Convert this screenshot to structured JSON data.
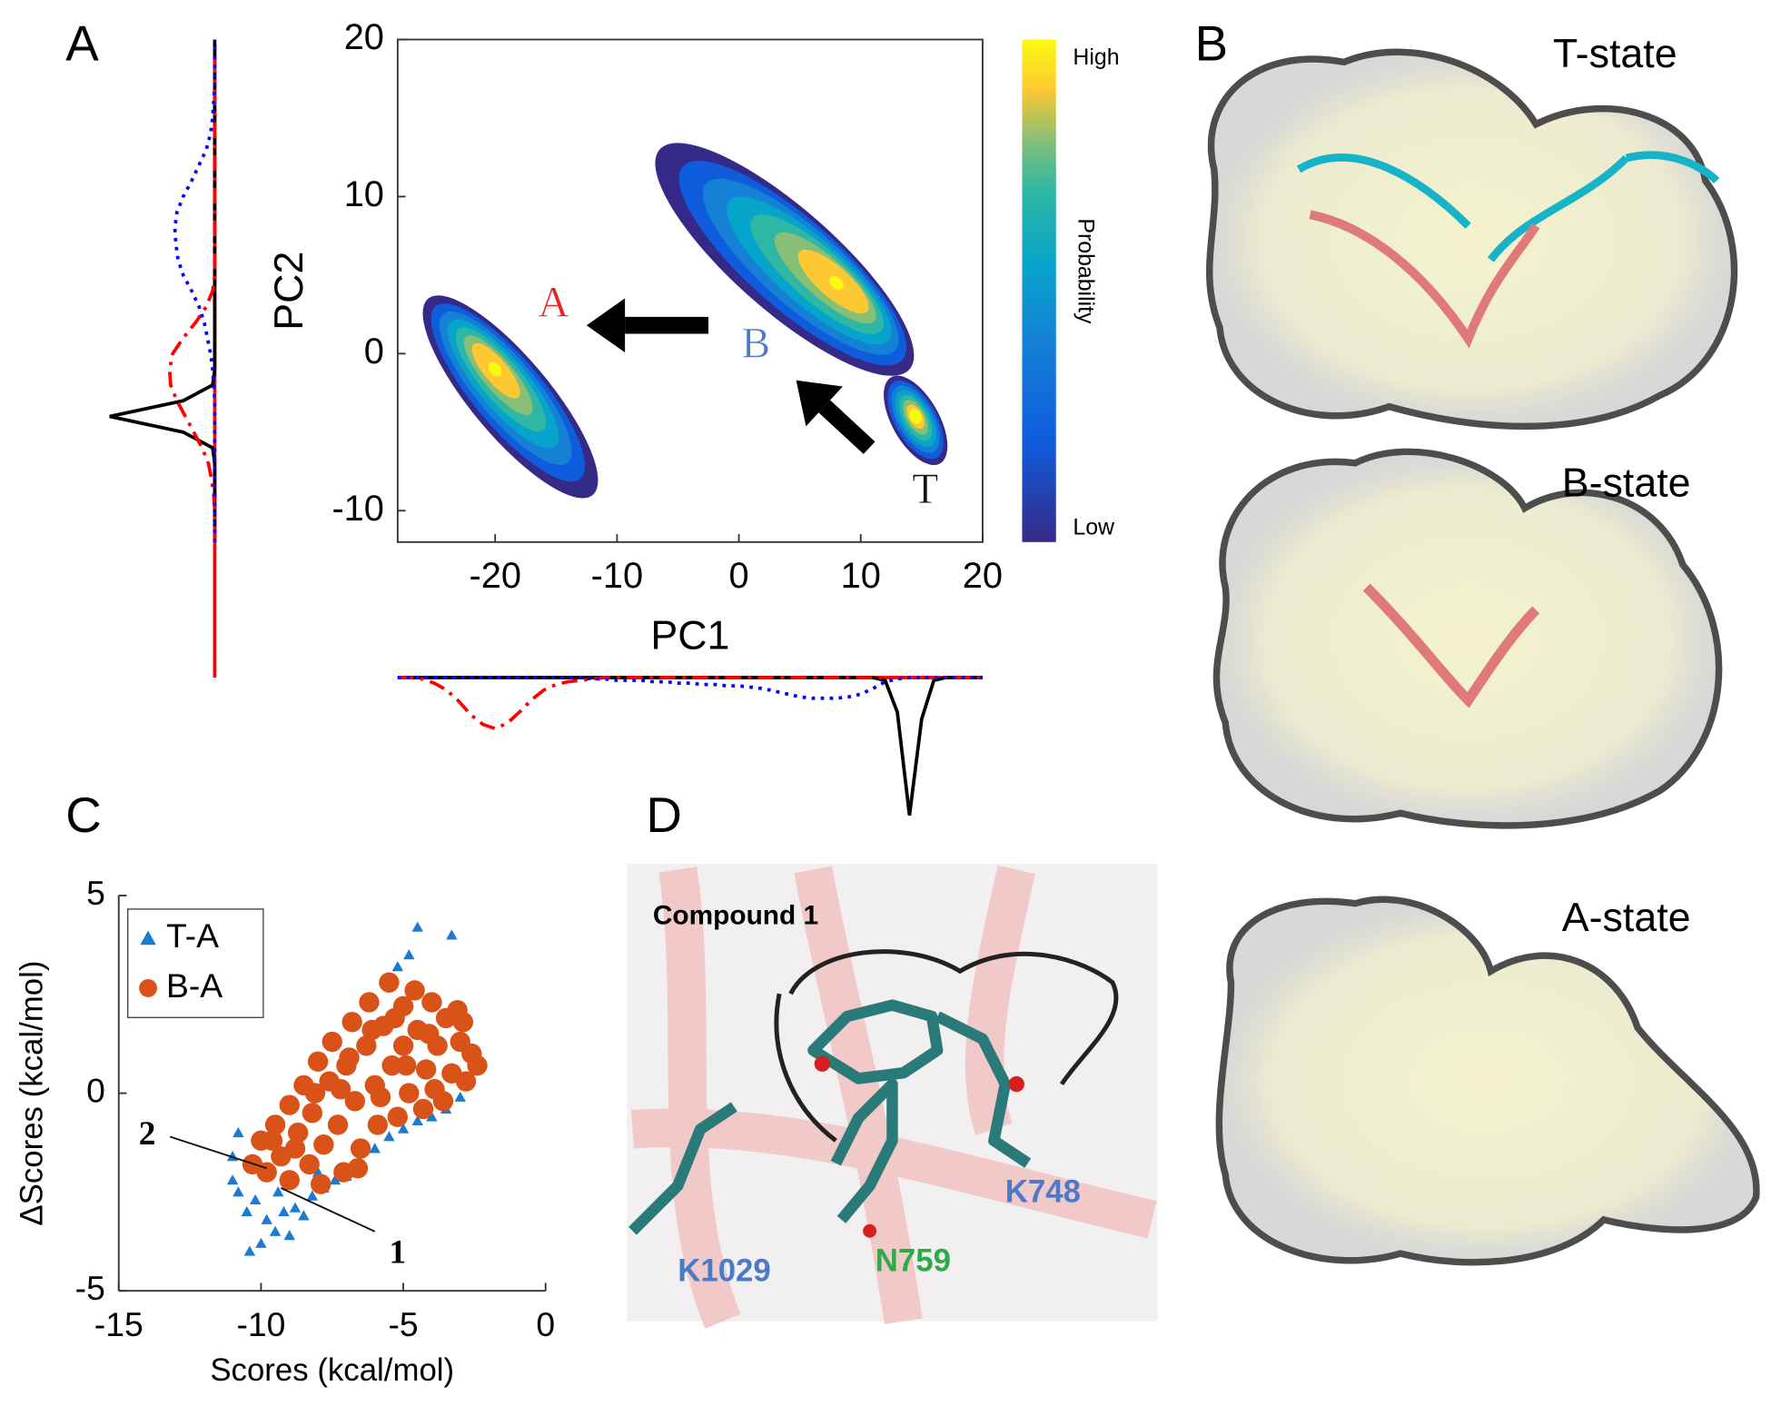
{
  "figure": {
    "panel_labels": [
      "A",
      "B",
      "C",
      "D"
    ],
    "structures": [
      "T-state",
      "B-state",
      "A-state"
    ],
    "docking": {
      "ligand": "Compound 1",
      "residues": [
        "K1029",
        "N759",
        "K748"
      ]
    }
  },
  "chart_data": [
    {
      "type": "density",
      "xlabel": "PC1",
      "ylabel": "PC2",
      "xlim": [
        -28,
        20
      ],
      "ylim": [
        -12,
        20
      ],
      "xticks": [
        -20,
        -10,
        0,
        10,
        20
      ],
      "yticks": [
        -10,
        0,
        10,
        20
      ],
      "colorbar": {
        "label": "Probability",
        "high": "High",
        "low": "Low"
      },
      "clusters": [
        {
          "from": [
            -25.5,
            3.5
          ],
          "to": [
            -12,
            -9
          ],
          "width": 5,
          "peak": [
            -20,
            -1
          ]
        },
        {
          "from": [
            -6.5,
            13
          ],
          "to": [
            14,
            -1
          ],
          "width": 6.5,
          "peak": [
            8,
            4.5
          ]
        },
        {
          "from": [
            12.5,
            -1.5
          ],
          "to": [
            16.5,
            -7
          ],
          "width": 3,
          "peak": [
            14.5,
            -4
          ]
        }
      ],
      "annotations": [
        {
          "text": "A",
          "x": -15.2,
          "y": 3,
          "color": "#e8231f"
        },
        {
          "text": "B",
          "x": 1.4,
          "y": 0.4,
          "color": "#4a7ac8"
        },
        {
          "text": "T",
          "x": 15.3,
          "y": -8.9,
          "color": "#111111"
        }
      ],
      "arrows": [
        {
          "from": [
            -2.5,
            1.8
          ],
          "to": [
            -12.5,
            1.8
          ]
        },
        {
          "from": [
            10.7,
            -6
          ],
          "to": [
            4.7,
            -1.7
          ]
        }
      ]
    },
    {
      "type": "line",
      "orientation": "horizontal",
      "x": [
        -28,
        -27,
        -26,
        -25,
        -24,
        -23,
        -22,
        -21,
        -20,
        -19,
        -18,
        -17,
        -16,
        -15,
        -14,
        -13,
        -12,
        -11,
        -10,
        -9,
        -8,
        -7,
        -6,
        -5,
        -4,
        -3,
        -2,
        -1,
        0,
        1,
        2,
        3,
        4,
        5,
        6,
        7,
        8,
        9,
        10,
        11,
        12,
        13,
        14,
        15,
        16,
        17,
        18,
        19,
        20
      ],
      "series": [
        {
          "color": "#000000",
          "style": "solid",
          "values": [
            0,
            0,
            0,
            0,
            0,
            0,
            0,
            0,
            0,
            0,
            0,
            0,
            0,
            0,
            0,
            0,
            0,
            0,
            0,
            0,
            0,
            0,
            0,
            0,
            0,
            0,
            0,
            0,
            0,
            0,
            0,
            0,
            0,
            0,
            0,
            0,
            0,
            0,
            0,
            0,
            0.02,
            0.25,
            1,
            0.3,
            0.02,
            0,
            0,
            0,
            0
          ]
        },
        {
          "color": "#ff0000",
          "style": "dashdot",
          "values": [
            0,
            0,
            0.01,
            0.04,
            0.09,
            0.17,
            0.27,
            0.34,
            0.37,
            0.33,
            0.25,
            0.16,
            0.09,
            0.05,
            0.03,
            0.02,
            0.01,
            0,
            0,
            0,
            0,
            0,
            0,
            0,
            0,
            0,
            0,
            0,
            0,
            0,
            0,
            0,
            0,
            0,
            0,
            0,
            0,
            0,
            0,
            0,
            0,
            0,
            0,
            0,
            0,
            0,
            0,
            0,
            0
          ]
        },
        {
          "color": "#0000ff",
          "style": "dotted",
          "values": [
            0,
            0,
            0,
            0,
            0,
            0,
            0,
            0,
            0,
            0,
            0,
            0,
            0,
            0,
            0,
            0,
            0.01,
            0.01,
            0.02,
            0.02,
            0.02,
            0.03,
            0.03,
            0.04,
            0.04,
            0.05,
            0.05,
            0.06,
            0.06,
            0.07,
            0.08,
            0.1,
            0.12,
            0.14,
            0.15,
            0.15,
            0.15,
            0.14,
            0.12,
            0.08,
            0.03,
            0.01,
            0,
            0,
            0,
            0,
            0,
            0,
            0
          ]
        }
      ]
    },
    {
      "type": "line",
      "orientation": "vertical",
      "x": [
        -12,
        -11,
        -10,
        -9,
        -8,
        -7,
        -6,
        -5,
        -4,
        -3,
        -2,
        -1,
        0,
        1,
        2,
        3,
        4,
        5,
        6,
        7,
        8,
        9,
        10,
        11,
        12,
        13,
        14,
        15,
        16,
        17,
        18,
        19,
        20
      ],
      "series": [
        {
          "color": "#000000",
          "style": "solid",
          "values": [
            0,
            0,
            0,
            0,
            0,
            0,
            0.02,
            0.3,
            1,
            0.3,
            0.02,
            0,
            0,
            0,
            0,
            0,
            0,
            0,
            0,
            0,
            0,
            0,
            0,
            0,
            0,
            0,
            0,
            0,
            0,
            0,
            0,
            0,
            0
          ]
        },
        {
          "color": "#ff0000",
          "style": "dashdot",
          "values": [
            0,
            0,
            0,
            0.01,
            0.03,
            0.06,
            0.12,
            0.2,
            0.28,
            0.36,
            0.42,
            0.43,
            0.4,
            0.3,
            0.18,
            0.08,
            0.02,
            0,
            0,
            0,
            0,
            0,
            0,
            0,
            0,
            0,
            0,
            0,
            0,
            0,
            0,
            0,
            0
          ]
        },
        {
          "color": "#0000ff",
          "style": "dotted",
          "values": [
            0,
            0,
            0,
            0,
            0,
            0,
            0,
            0,
            0,
            0,
            0.01,
            0.02,
            0.04,
            0.07,
            0.1,
            0.15,
            0.22,
            0.3,
            0.35,
            0.37,
            0.38,
            0.36,
            0.3,
            0.22,
            0.15,
            0.08,
            0.04,
            0.02,
            0.01,
            0,
            0,
            0,
            0
          ]
        }
      ]
    },
    {
      "type": "scatter",
      "xlabel": "Scores (kcal/mol)",
      "ylabel": "ΔScores (kcal/mol)",
      "xlim": [
        -15,
        0
      ],
      "ylim": [
        -5,
        5
      ],
      "xticks": [
        -15,
        -10,
        -5,
        0
      ],
      "yticks": [
        -5,
        0,
        5
      ],
      "legend": "upper left",
      "series": [
        {
          "name": "T-A",
          "color": "#1a7bd0",
          "marker": "triangle",
          "x": [
            -11,
            -10.8,
            -10.5,
            -10.2,
            -10,
            -9.8,
            -9.5,
            -9.2,
            -9,
            -8.8,
            -8.5,
            -8.2,
            -7.8,
            -7.4,
            -7,
            -6.5,
            -6,
            -5.5,
            -5,
            -4.5,
            -4,
            -3.5,
            -3,
            -3.3,
            -4.8,
            -4.5,
            -5.2,
            -10.8,
            -11,
            -10.4,
            -9.4,
            -8
          ],
          "y": [
            -2.2,
            -2.5,
            -3,
            -2.7,
            -3.8,
            -3.2,
            -3.5,
            -3,
            -3.6,
            -2.9,
            -3.1,
            -2.6,
            -2.4,
            -2.2,
            -2.1,
            -1.8,
            -1.4,
            -1.1,
            -0.9,
            -0.7,
            -0.6,
            -0.4,
            -0.1,
            4,
            3.5,
            4.2,
            3.2,
            -1,
            -1.6,
            -4,
            -2.5,
            -2
          ]
        },
        {
          "name": "B-A",
          "color": "#d95319",
          "marker": "circle",
          "x": [
            -10.3,
            -10,
            -9.8,
            -9.5,
            -9.3,
            -9,
            -9,
            -8.7,
            -8.5,
            -8.3,
            -8.2,
            -8,
            -7.8,
            -7.6,
            -7.5,
            -7.3,
            -7.1,
            -7,
            -6.8,
            -6.7,
            -6.5,
            -6.3,
            -6.2,
            -6,
            -5.9,
            -5.7,
            -5.5,
            -5.4,
            -5.2,
            -5,
            -5,
            -4.8,
            -4.6,
            -4.5,
            -4.3,
            -4.2,
            -4,
            -3.8,
            -3.6,
            -3.5,
            -3.3,
            -3.1,
            -3,
            -2.8,
            -2.6,
            -2.4,
            -6.6,
            -7.9,
            -8.8,
            -9.6,
            -6.9,
            -5.8,
            -4.9,
            -4.1,
            -7.2,
            -6.1,
            -5.3,
            -8.1,
            -3.9,
            -2.9
          ],
          "y": [
            -1.8,
            -1.2,
            -2,
            -0.8,
            -1.6,
            -0.3,
            -2.2,
            -1,
            0.2,
            -1.8,
            -0.5,
            0.8,
            -1.3,
            0.3,
            1.3,
            -0.8,
            -2,
            0.7,
            1.8,
            -0.2,
            -1.4,
            1.2,
            2.3,
            0.2,
            -0.8,
            1.7,
            2.8,
            0.7,
            -0.6,
            2.2,
            1.2,
            0,
            2.6,
            1.6,
            -0.4,
            0.6,
            2.3,
            1.2,
            -0.2,
            1.9,
            0.5,
            2.1,
            1.3,
            0.3,
            1,
            0.7,
            -1.9,
            -2.3,
            -1.4,
            -1.2,
            0.9,
            -0.1,
            0.7,
            1.5,
            0.1,
            1.6,
            1.9,
            0,
            0.1,
            1.8
          ]
        }
      ],
      "annotations": [
        {
          "text": "1",
          "x": -5.2,
          "y": -4.1,
          "line": [
            -6,
            -3.5,
            -9.3,
            -2.4
          ]
        },
        {
          "text": "2",
          "x": -14,
          "y": -1.1,
          "line": [
            -13.2,
            -1.1,
            -9.8,
            -1.9
          ]
        }
      ]
    }
  ]
}
